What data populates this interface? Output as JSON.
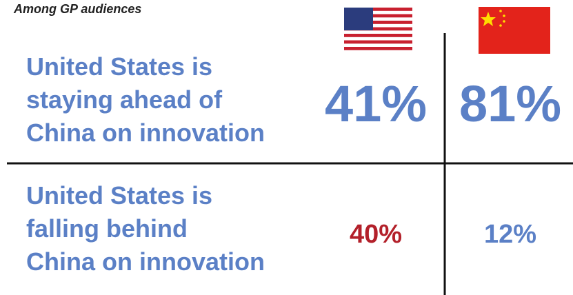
{
  "subtitle": "Among GP audiences",
  "rows": [
    {
      "label": [
        "United States is",
        "staying ahead of",
        "China on innovation"
      ],
      "values": [
        "41%",
        "81%"
      ]
    },
    {
      "label": [
        "United States is",
        "falling behind",
        "China on innovation"
      ],
      "values": [
        "40%",
        "12%"
      ]
    }
  ]
}
